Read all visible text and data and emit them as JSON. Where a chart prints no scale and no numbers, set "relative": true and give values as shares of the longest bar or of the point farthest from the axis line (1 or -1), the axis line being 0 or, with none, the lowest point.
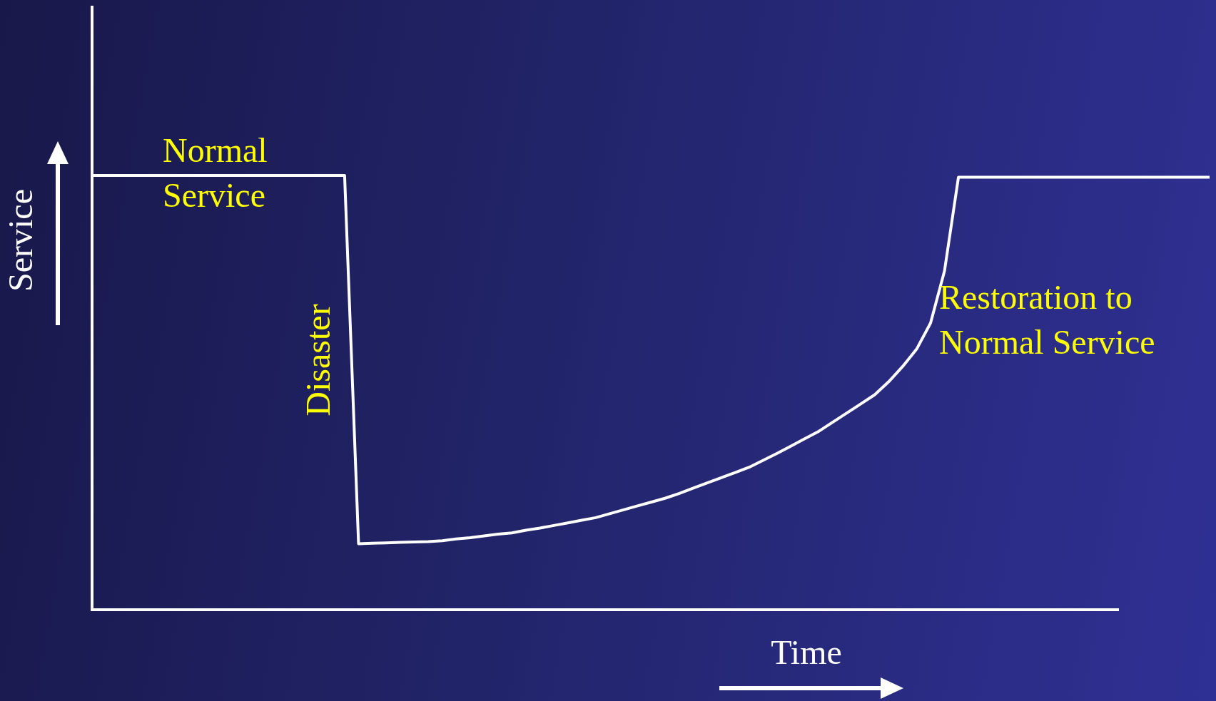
{
  "chart_data": {
    "type": "line",
    "relative": true,
    "xlabel": "Time",
    "ylabel": "Service",
    "line_style": "solid",
    "categories": [
      null,
      null,
      null,
      null,
      null,
      null,
      null,
      null,
      null,
      null,
      null,
      null,
      null,
      null,
      null,
      null,
      null,
      null,
      null,
      null,
      null,
      null,
      null,
      null,
      null,
      null,
      null,
      null,
      null,
      null,
      null,
      null,
      null,
      null,
      null,
      null,
      null,
      null,
      null,
      null,
      null,
      null,
      null,
      null,
      null,
      null,
      null,
      null,
      null,
      null,
      null,
      null,
      null,
      null,
      null,
      null,
      null,
      null,
      null,
      null,
      null,
      null,
      null,
      null,
      null,
      null,
      null,
      null,
      null,
      null,
      null,
      null,
      null,
      null,
      null,
      null,
      null,
      null,
      null,
      null,
      null
    ],
    "series": [
      {
        "color": "#ffffff",
        "values": [
          1,
          1,
          1,
          1,
          1,
          1,
          1,
          1,
          1,
          1,
          1,
          1,
          1,
          1,
          1,
          1,
          1,
          1,
          1,
          0.152,
          0.153,
          0.154,
          0.155,
          0.156,
          0.157,
          0.159,
          0.163,
          0.166,
          0.17,
          0.174,
          0.177,
          0.183,
          0.188,
          0.194,
          0.2,
          0.206,
          0.212,
          0.221,
          0.23,
          0.239,
          0.248,
          0.257,
          0.268,
          0.28,
          0.292,
          0.304,
          0.316,
          0.328,
          0.344,
          0.36,
          0.377,
          0.394,
          0.411,
          0.432,
          0.453,
          0.474,
          0.495,
          0.525,
          0.56,
          0.6,
          0.66,
          0.78,
          0.996,
          0.996,
          0.996,
          0.996,
          0.996,
          0.996,
          0.996,
          0.996,
          0.996,
          0.996,
          0.996,
          0.996,
          0.996,
          0.996,
          0.996,
          0.996,
          0.996,
          0.996,
          0.996
        ]
      }
    ],
    "annotations": [
      "Normal Service",
      "Disaster",
      "Restoration to Normal Service"
    ]
  }
}
